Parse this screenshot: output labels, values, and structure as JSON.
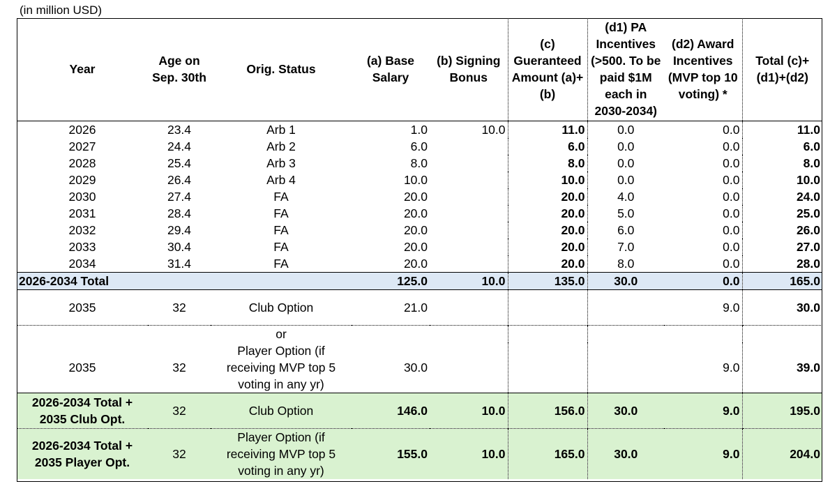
{
  "unit_note": "(in million USD)",
  "headers": {
    "year": "Year",
    "age": "Age on Sep. 30th",
    "status": "Orig. Status",
    "base": "(a) Base Salary",
    "bonus": "(b) Signing Bonus",
    "guaranteed": "(c) Gueranteed Amount (a)+(b)",
    "pa": "(d1) PA Incentives (>500. To be paid $1M each in 2030-2034)",
    "award": "(d2) Award Incentives (MVP top 10 voting) *",
    "total": "Total (c)+(d1)+(d2)"
  },
  "rows": [
    {
      "year": "2026",
      "age": "23.4",
      "status": "Arb 1",
      "base": "1.0",
      "bonus": "10.0",
      "guaranteed": "11.0",
      "pa": "0.0",
      "award": "0.0",
      "total": "11.0"
    },
    {
      "year": "2027",
      "age": "24.4",
      "status": "Arb 2",
      "base": "6.0",
      "bonus": "",
      "guaranteed": "6.0",
      "pa": "0.0",
      "award": "0.0",
      "total": "6.0"
    },
    {
      "year": "2028",
      "age": "25.4",
      "status": "Arb 3",
      "base": "8.0",
      "bonus": "",
      "guaranteed": "8.0",
      "pa": "0.0",
      "award": "0.0",
      "total": "8.0"
    },
    {
      "year": "2029",
      "age": "26.4",
      "status": "Arb 4",
      "base": "10.0",
      "bonus": "",
      "guaranteed": "10.0",
      "pa": "0.0",
      "award": "0.0",
      "total": "10.0"
    },
    {
      "year": "2030",
      "age": "27.4",
      "status": "FA",
      "base": "20.0",
      "bonus": "",
      "guaranteed": "20.0",
      "pa": "4.0",
      "award": "0.0",
      "total": "24.0"
    },
    {
      "year": "2031",
      "age": "28.4",
      "status": "FA",
      "base": "20.0",
      "bonus": "",
      "guaranteed": "20.0",
      "pa": "5.0",
      "award": "0.0",
      "total": "25.0"
    },
    {
      "year": "2032",
      "age": "29.4",
      "status": "FA",
      "base": "20.0",
      "bonus": "",
      "guaranteed": "20.0",
      "pa": "6.0",
      "award": "0.0",
      "total": "26.0"
    },
    {
      "year": "2033",
      "age": "30.4",
      "status": "FA",
      "base": "20.0",
      "bonus": "",
      "guaranteed": "20.0",
      "pa": "7.0",
      "award": "0.0",
      "total": "27.0"
    },
    {
      "year": "2034",
      "age": "31.4",
      "status": "FA",
      "base": "20.0",
      "bonus": "",
      "guaranteed": "20.0",
      "pa": "8.0",
      "award": "0.0",
      "total": "28.0"
    }
  ],
  "subtotal": {
    "label": "2026-2034 Total",
    "base": "125.0",
    "bonus": "10.0",
    "guaranteed": "135.0",
    "pa": "30.0",
    "award": "0.0",
    "total": "165.0"
  },
  "club_option": {
    "year": "2035",
    "age": "32",
    "status": "Club Option",
    "base": "21.0",
    "award": "9.0",
    "total": "30.0"
  },
  "or_label": "or",
  "player_option": {
    "year": "2035",
    "age": "32",
    "status": "Player Option (if receiving MVP top 5 voting in any yr)",
    "base": "30.0",
    "award": "9.0",
    "total": "39.0"
  },
  "total_club": {
    "label": "2026-2034 Total + 2035 Club Opt.",
    "age": "32",
    "status": "Club Option",
    "base": "146.0",
    "bonus": "10.0",
    "guaranteed": "156.0",
    "pa": "30.0",
    "award": "9.0",
    "total": "195.0"
  },
  "total_player": {
    "label": "2026-2034 Total + 2035 Player Opt.",
    "age": "32",
    "status": "Player Option (if receiving MVP top 5 voting in any yr)",
    "base": "155.0",
    "bonus": "10.0",
    "guaranteed": "165.0",
    "pa": "30.0",
    "award": "9.0",
    "total": "204.0"
  }
}
